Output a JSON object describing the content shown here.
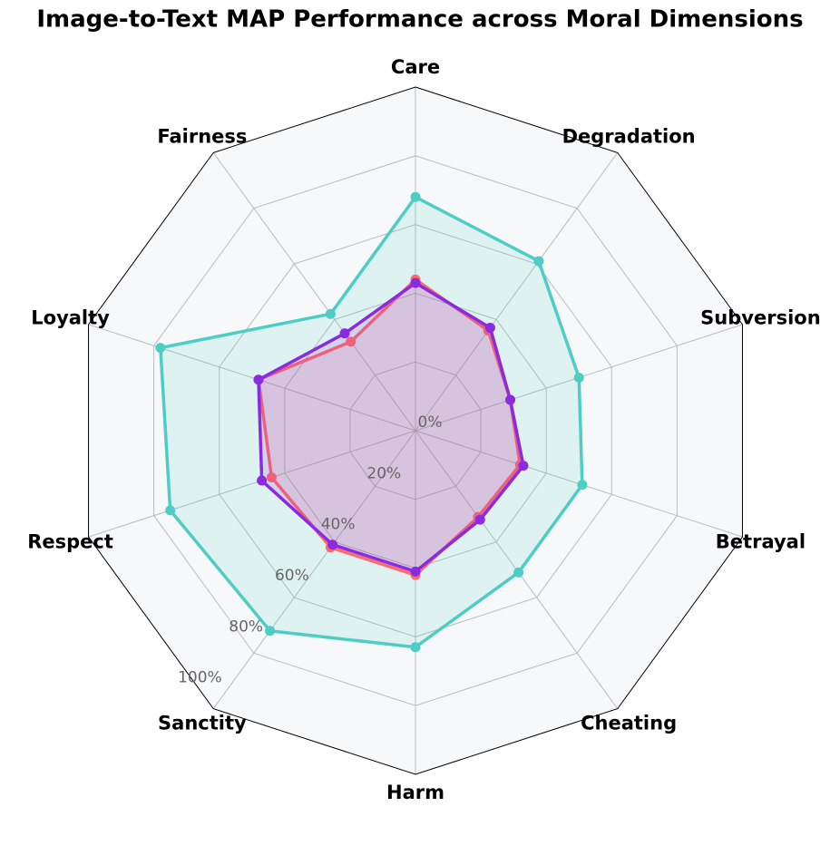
{
  "chart_data": {
    "type": "radar",
    "title": "Image-to-Text MAP Performance across Moral Dimensions",
    "categories": [
      "Care",
      "Degradation",
      "Subversion",
      "Betrayal",
      "Cheating",
      "Harm",
      "Sanctity",
      "Respect",
      "Loyalty",
      "Fairness"
    ],
    "ylim": [
      0,
      100
    ],
    "yticks": [
      {
        "value": 0,
        "label": "0%"
      },
      {
        "value": 20,
        "label": "20%"
      },
      {
        "value": 40,
        "label": "40%"
      },
      {
        "value": 60,
        "label": "60%"
      },
      {
        "value": 80,
        "label": "80%"
      },
      {
        "value": 100,
        "label": "100%"
      }
    ],
    "grid": true,
    "series": [
      {
        "color": "#4ecdc4",
        "values": [
          68,
          61,
          50,
          51,
          51,
          63,
          72,
          75,
          78,
          42
        ]
      },
      {
        "color": "#ff6b6b",
        "values": [
          44,
          36,
          29,
          32,
          31,
          42,
          42,
          44,
          48,
          32
        ]
      },
      {
        "color": "#8a2be2",
        "values": [
          43,
          37,
          29,
          33,
          32,
          41,
          41,
          47,
          48,
          35
        ]
      }
    ]
  }
}
